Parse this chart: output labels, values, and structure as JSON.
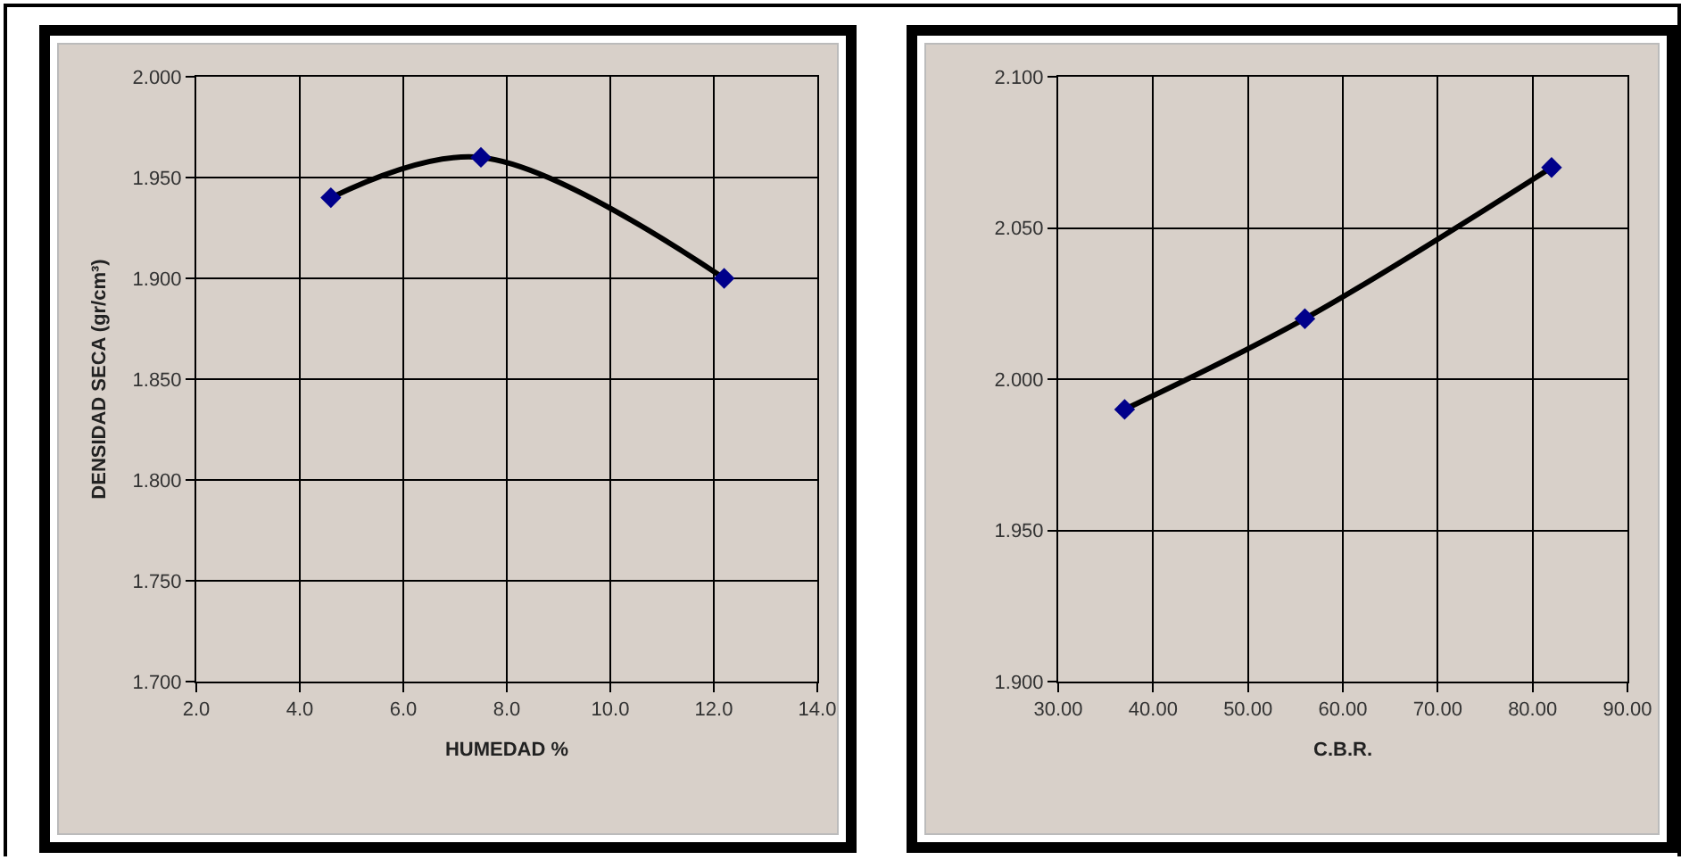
{
  "chart_data": [
    {
      "type": "line",
      "xlabel": "HUMEDAD %",
      "ylabel": "DENSIDAD SECA (gr/cm³)",
      "x": [
        4.6,
        7.5,
        12.2
      ],
      "series": [
        {
          "color": "#000000",
          "colors": [
            "#00008b",
            "#00008b",
            "#00008b"
          ],
          "values": [
            1.94,
            1.96,
            1.9
          ]
        }
      ],
      "xlim": [
        2,
        14
      ],
      "xticks": [
        {
          "value": 2,
          "label": "2.0"
        },
        {
          "value": 4,
          "label": "4.0"
        },
        {
          "value": 6,
          "label": "6.0"
        },
        {
          "value": 8,
          "label": "8.0"
        },
        {
          "value": 10,
          "label": "10.0"
        },
        {
          "value": 12,
          "label": "12.0"
        },
        {
          "value": 14,
          "label": "14.0"
        }
      ],
      "ylim": [
        1.7,
        2
      ],
      "yticks": [
        {
          "value": 1.7,
          "label": "1.700"
        },
        {
          "value": 1.75,
          "label": "1.750"
        },
        {
          "value": 1.8,
          "label": "1.800"
        },
        {
          "value": 1.85,
          "label": "1.850"
        },
        {
          "value": 1.9,
          "label": "1.900"
        },
        {
          "value": 1.95,
          "label": "1.950"
        },
        {
          "value": 2,
          "label": "2.000"
        }
      ],
      "grid": true,
      "marker": "diamond",
      "line_style": "solid"
    },
    {
      "type": "line",
      "xlabel": "C.B.R.",
      "x": [
        37,
        56,
        82
      ],
      "series": [
        {
          "color": "#000000",
          "colors": [
            "#00008b",
            "#00008b",
            "#00008b"
          ],
          "values": [
            1.99,
            2.02,
            2.07
          ]
        }
      ],
      "xlim": [
        30,
        90
      ],
      "xticks": [
        {
          "value": 30,
          "label": "30.00"
        },
        {
          "value": 40,
          "label": "40.00"
        },
        {
          "value": 50,
          "label": "50.00"
        },
        {
          "value": 60,
          "label": "60.00"
        },
        {
          "value": 70,
          "label": "70.00"
        },
        {
          "value": 80,
          "label": "80.00"
        },
        {
          "value": 90,
          "label": "90.00"
        }
      ],
      "ylim": [
        1.9,
        2.1
      ],
      "yticks": [
        {
          "value": 1.9,
          "label": "1.900"
        },
        {
          "value": 1.95,
          "label": "1.950"
        },
        {
          "value": 2,
          "label": "2.000"
        },
        {
          "value": 2.05,
          "label": "2.050"
        },
        {
          "value": 2.1,
          "label": "2.100"
        }
      ],
      "grid": true,
      "marker": "diamond",
      "line_style": "solid"
    }
  ]
}
